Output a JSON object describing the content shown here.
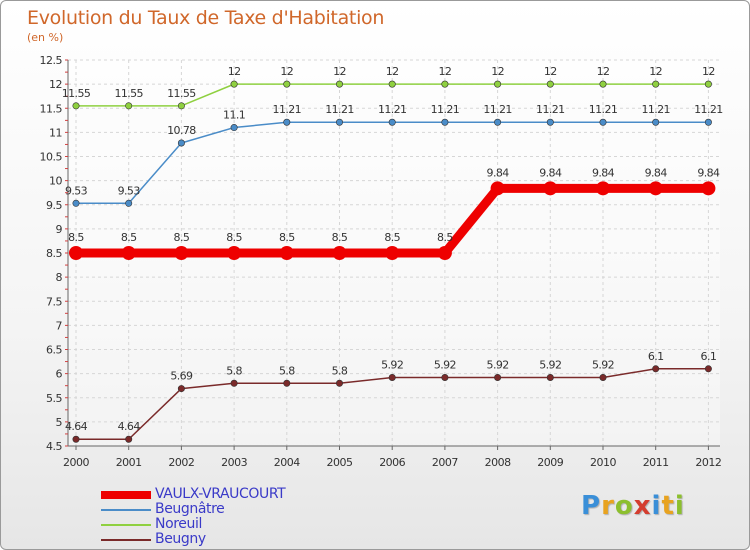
{
  "title": "Evolution du Taux de Taxe d'Habitation",
  "subtitle": "(en %)",
  "logo": {
    "text": "Proxiti",
    "letters": [
      "P",
      "r",
      "o",
      "x",
      "i",
      "t",
      "i"
    ]
  },
  "chart_data": {
    "type": "line",
    "title": "Evolution du Taux de Taxe d'Habitation",
    "ylabel": "(en %)",
    "xlabel": "",
    "ylim": [
      4.5,
      12.5
    ],
    "yticks": [
      4.5,
      5,
      5.5,
      6,
      6.5,
      7,
      7.5,
      8,
      8.5,
      9,
      9.5,
      10,
      10.5,
      11,
      11.5,
      12,
      12.5
    ],
    "ytick_labels": [
      "4.5",
      "5",
      "5.5",
      "6",
      "6.5",
      "7",
      "7.5",
      "8",
      "8.5",
      "9",
      "9.5",
      "10",
      "10.5",
      "11",
      "11.5",
      "12",
      "12.5"
    ],
    "x": [
      "2000",
      "2001",
      "2002",
      "2003",
      "2004",
      "2005",
      "2006",
      "2007",
      "2008",
      "2009",
      "2010",
      "2011",
      "2012"
    ],
    "legend_position": "bottom-left",
    "series": [
      {
        "name": "VAULX-VRAUCOURT",
        "color": "#ee0000",
        "emphasis": true,
        "values": [
          8.5,
          8.5,
          8.5,
          8.5,
          8.5,
          8.5,
          8.5,
          8.5,
          9.84,
          9.84,
          9.84,
          9.84,
          9.84
        ],
        "labels": [
          "8.5",
          "8.5",
          "8.5",
          "8.5",
          "8.5",
          "8.5",
          "8.5",
          "8.5",
          "9.84",
          "9.84",
          "9.84",
          "9.84",
          "9.84"
        ]
      },
      {
        "name": "Beugnâtre",
        "color": "#4a8cc8",
        "emphasis": false,
        "values": [
          9.53,
          9.53,
          10.78,
          11.1,
          11.21,
          11.21,
          11.21,
          11.21,
          11.21,
          11.21,
          11.21,
          11.21,
          11.21
        ],
        "labels": [
          "9.53",
          "9.53",
          "10.78",
          "11.1",
          "11.21",
          "11.21",
          "11.21",
          "11.21",
          "11.21",
          "11.21",
          "11.21",
          "11.21",
          "11.21"
        ]
      },
      {
        "name": "Noreuil",
        "color": "#8fd040",
        "emphasis": false,
        "values": [
          11.55,
          11.55,
          11.55,
          12,
          12,
          12,
          12,
          12,
          12,
          12,
          12,
          12,
          12
        ],
        "labels": [
          "11.55",
          "11.55",
          "11.55",
          "12",
          "12",
          "12",
          "12",
          "12",
          "12",
          "12",
          "12",
          "12",
          "12"
        ]
      },
      {
        "name": "Beugny",
        "color": "#7a2a2a",
        "emphasis": false,
        "values": [
          4.64,
          4.64,
          5.69,
          5.8,
          5.8,
          5.8,
          5.92,
          5.92,
          5.92,
          5.92,
          5.92,
          6.1,
          6.1
        ],
        "labels": [
          "4.64",
          "4.64",
          "5.69",
          "5.8",
          "5.8",
          "5.8",
          "5.92",
          "5.92",
          "5.92",
          "5.92",
          "5.92",
          "6.1",
          "6.1"
        ]
      }
    ]
  }
}
